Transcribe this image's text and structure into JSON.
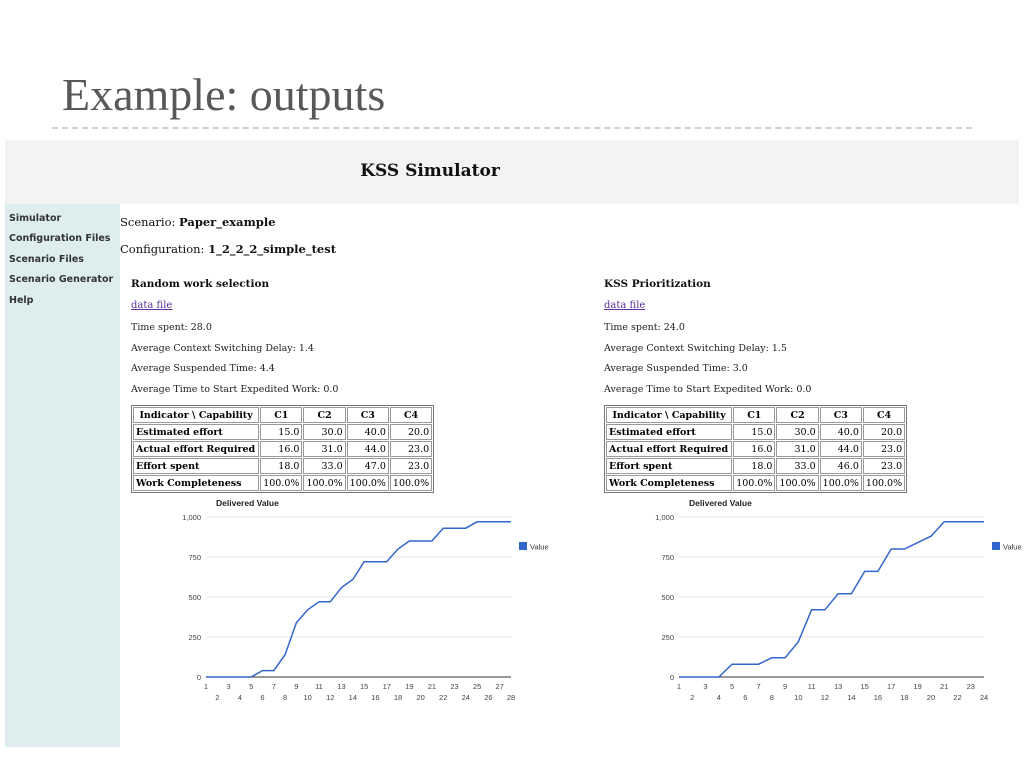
{
  "slide": {
    "title": "Example: outputs"
  },
  "app": {
    "title": "KSS Simulator"
  },
  "sidebar": {
    "items": [
      {
        "label": "Simulator"
      },
      {
        "label": "Configuration Files"
      },
      {
        "label": "Scenario Files"
      },
      {
        "label": "Scenario Generator"
      },
      {
        "label": "Help"
      }
    ]
  },
  "scenario": {
    "label": "Scenario: ",
    "value": "Paper_example"
  },
  "configuration": {
    "label": "Configuration: ",
    "value": "1_2_2_2_simple_test"
  },
  "panels": [
    {
      "title": "Random work selection",
      "link": "data file",
      "stats": [
        "Time spent: 28.0",
        "Average Context Switching Delay: 1.4",
        "Average Suspended Time: 4.4",
        "Average Time to Start Expedited Work: 0.0"
      ],
      "table": {
        "headers": [
          "Indicator \\ Capability",
          "C1",
          "C2",
          "C3",
          "C4"
        ],
        "rows": [
          [
            "Estimated effort",
            "15.0",
            "30.0",
            "40.0",
            "20.0"
          ],
          [
            "Actual effort Required",
            "16.0",
            "31.0",
            "44.0",
            "23.0"
          ],
          [
            "Effort spent",
            "18.0",
            "33.0",
            "47.0",
            "23.0"
          ],
          [
            "Work Completeness",
            "100.0%",
            "100.0%",
            "100.0%",
            "100.0%"
          ]
        ]
      }
    },
    {
      "title": "KSS Prioritization",
      "link": "data file",
      "stats": [
        "Time spent: 24.0",
        "Average Context Switching Delay: 1.5",
        "Average Suspended Time: 3.0",
        "Average Time to Start Expedited Work: 0.0"
      ],
      "table": {
        "headers": [
          "Indicator \\ Capability",
          "C1",
          "C2",
          "C3",
          "C4"
        ],
        "rows": [
          [
            "Estimated effort",
            "15.0",
            "30.0",
            "40.0",
            "20.0"
          ],
          [
            "Actual effort Required",
            "16.0",
            "31.0",
            "44.0",
            "23.0"
          ],
          [
            "Effort spent",
            "18.0",
            "33.0",
            "46.0",
            "23.0"
          ],
          [
            "Work Completeness",
            "100.0%",
            "100.0%",
            "100.0%",
            "100.0%"
          ]
        ]
      }
    }
  ],
  "chart_data": [
    {
      "type": "line",
      "title": "Delivered Value",
      "legend": {
        "label": "Value",
        "position": "right"
      },
      "series": [
        {
          "name": "Value",
          "color": "#3366cc",
          "x": [
            1,
            2,
            3,
            4,
            5,
            6,
            7,
            8,
            9,
            10,
            11,
            12,
            13,
            14,
            15,
            16,
            17,
            18,
            19,
            20,
            21,
            22,
            23,
            24,
            25,
            26,
            27,
            28
          ],
          "values": [
            0,
            0,
            0,
            0,
            0,
            40,
            40,
            140,
            340,
            420,
            470,
            470,
            560,
            610,
            720,
            720,
            720,
            800,
            850,
            850,
            850,
            930,
            930,
            930,
            970,
            970,
            970,
            970
          ]
        }
      ],
      "xlim": [
        1,
        28
      ],
      "ylim": [
        0,
        1000
      ],
      "yticks": [
        "0",
        "250",
        "500",
        "750",
        "1,000"
      ],
      "grid": true,
      "color": "#3366cc"
    },
    {
      "type": "line",
      "title": "Delivered Value",
      "legend": {
        "label": "Value",
        "position": "right"
      },
      "series": [
        {
          "name": "Value",
          "color": "#3366cc",
          "x": [
            1,
            2,
            3,
            4,
            5,
            6,
            7,
            8,
            9,
            10,
            11,
            12,
            13,
            14,
            15,
            16,
            17,
            18,
            19,
            20,
            21,
            22,
            23,
            24
          ],
          "values": [
            0,
            0,
            0,
            0,
            80,
            80,
            80,
            120,
            120,
            220,
            420,
            420,
            520,
            520,
            660,
            660,
            800,
            800,
            840,
            880,
            970,
            970,
            970,
            970
          ]
        }
      ],
      "xlim": [
        1,
        24
      ],
      "ylim": [
        0,
        1000
      ],
      "yticks": [
        "0",
        "250",
        "500",
        "750",
        "1,000"
      ],
      "grid": true,
      "color": "#3366cc"
    }
  ]
}
